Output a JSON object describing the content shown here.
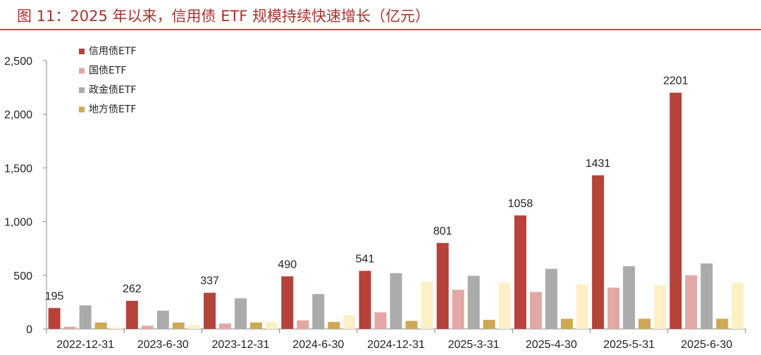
{
  "figure": {
    "title": "图 11：2025 年以来，信用债 ETF 规模持续快速增长（亿元）"
  },
  "chart_data": {
    "type": "bar",
    "categories": [
      "2022-12-31",
      "2023-6-30",
      "2023-12-31",
      "2024-6-30",
      "2024-12-31",
      "2025-3-31",
      "2025-4-30",
      "2025-5-31",
      "2025-6-30"
    ],
    "ylim": [
      0,
      2500
    ],
    "yticks": [
      0,
      500,
      1000,
      1500,
      2000,
      2500
    ],
    "ytick_labels": [
      "0",
      "500",
      "1,000",
      "1,500",
      "2,000",
      "2,500"
    ],
    "grid": false,
    "legend_position": "top-left",
    "series": [
      {
        "name": "信用债ETF",
        "color": "#b5433a",
        "values": [
          195,
          262,
          337,
          490,
          541,
          801,
          1058,
          1431,
          2201
        ],
        "labels": [
          "195",
          "262",
          "337",
          "490",
          "541",
          "801",
          "1058",
          "1431",
          "2201"
        ]
      },
      {
        "name": "国债ETF",
        "color": "#e3a7a4",
        "values": [
          20,
          30,
          50,
          80,
          155,
          365,
          345,
          385,
          500
        ]
      },
      {
        "name": "政金债ETF",
        "color": "#ababab",
        "values": [
          220,
          170,
          285,
          325,
          520,
          495,
          560,
          585,
          610
        ]
      },
      {
        "name": "地方债ETF",
        "color": "#cfa855",
        "values": [
          60,
          60,
          60,
          65,
          75,
          85,
          95,
          95,
          95
        ]
      },
      {
        "name": "",
        "color": "#fdf0c6",
        "values": [
          15,
          35,
          65,
          130,
          440,
          430,
          415,
          405,
          430
        ]
      }
    ]
  }
}
